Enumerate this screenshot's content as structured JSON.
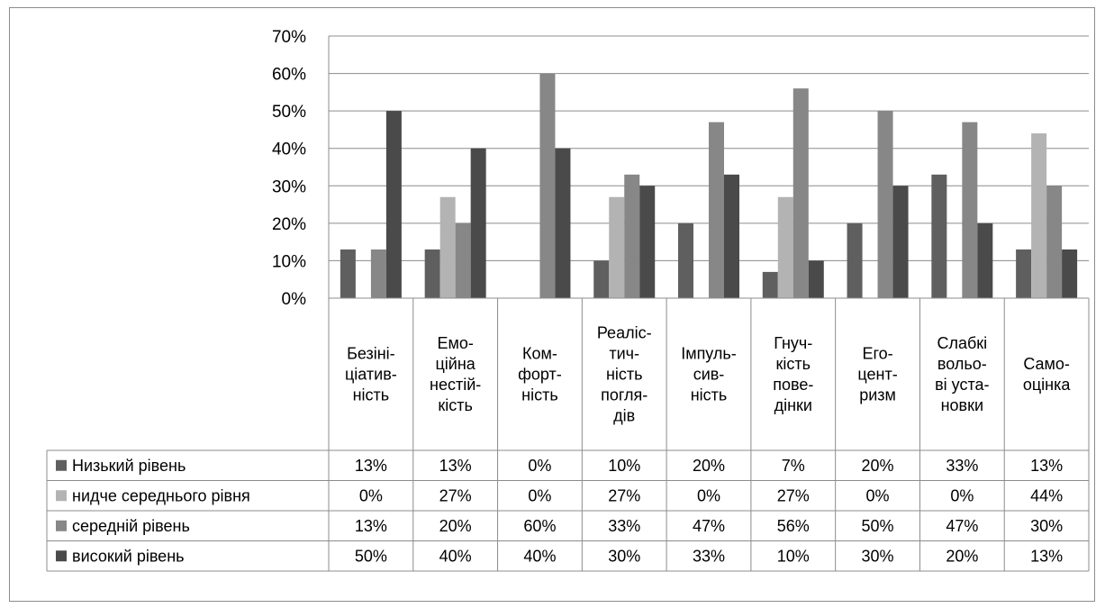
{
  "chart_data": {
    "type": "bar",
    "categories": [
      [
        "Безіні-",
        "ціатив-",
        "ність"
      ],
      [
        "Емо-",
        "ційна",
        "нестій-",
        "кість"
      ],
      [
        "Ком-",
        "форт-",
        "ність"
      ],
      [
        "Реаліс-",
        "тич-",
        "ність",
        "погля-",
        "дів"
      ],
      [
        "Імпуль-",
        "сив-",
        "ність"
      ],
      [
        "Гнуч-",
        "кість",
        "пове-",
        "дінки"
      ],
      [
        "Его-",
        "цент-",
        "ризм"
      ],
      [
        "Слабкі",
        "вольо-",
        "ві уста-",
        "новки"
      ],
      [
        "Само-",
        "оцінка"
      ]
    ],
    "series": [
      {
        "name": "Низький рівень",
        "color": "#5f5f5f",
        "values": [
          13,
          13,
          0,
          10,
          20,
          7,
          20,
          33,
          13
        ]
      },
      {
        "name": "нидче середнього рівня",
        "color": "#b3b3b3",
        "values": [
          0,
          27,
          0,
          27,
          0,
          27,
          0,
          0,
          44
        ]
      },
      {
        "name": "середній рівень",
        "color": "#878787",
        "values": [
          13,
          20,
          60,
          33,
          47,
          56,
          50,
          47,
          30
        ]
      },
      {
        "name": "високий рівень",
        "color": "#4a4a4a",
        "values": [
          50,
          40,
          40,
          30,
          33,
          10,
          30,
          20,
          13
        ]
      }
    ],
    "yticks": [
      "0%",
      "10%",
      "20%",
      "30%",
      "40%",
      "50%",
      "60%",
      "70%"
    ],
    "ylim": [
      0,
      70
    ],
    "grid": true,
    "legend": "data-table",
    "unit": "%"
  }
}
